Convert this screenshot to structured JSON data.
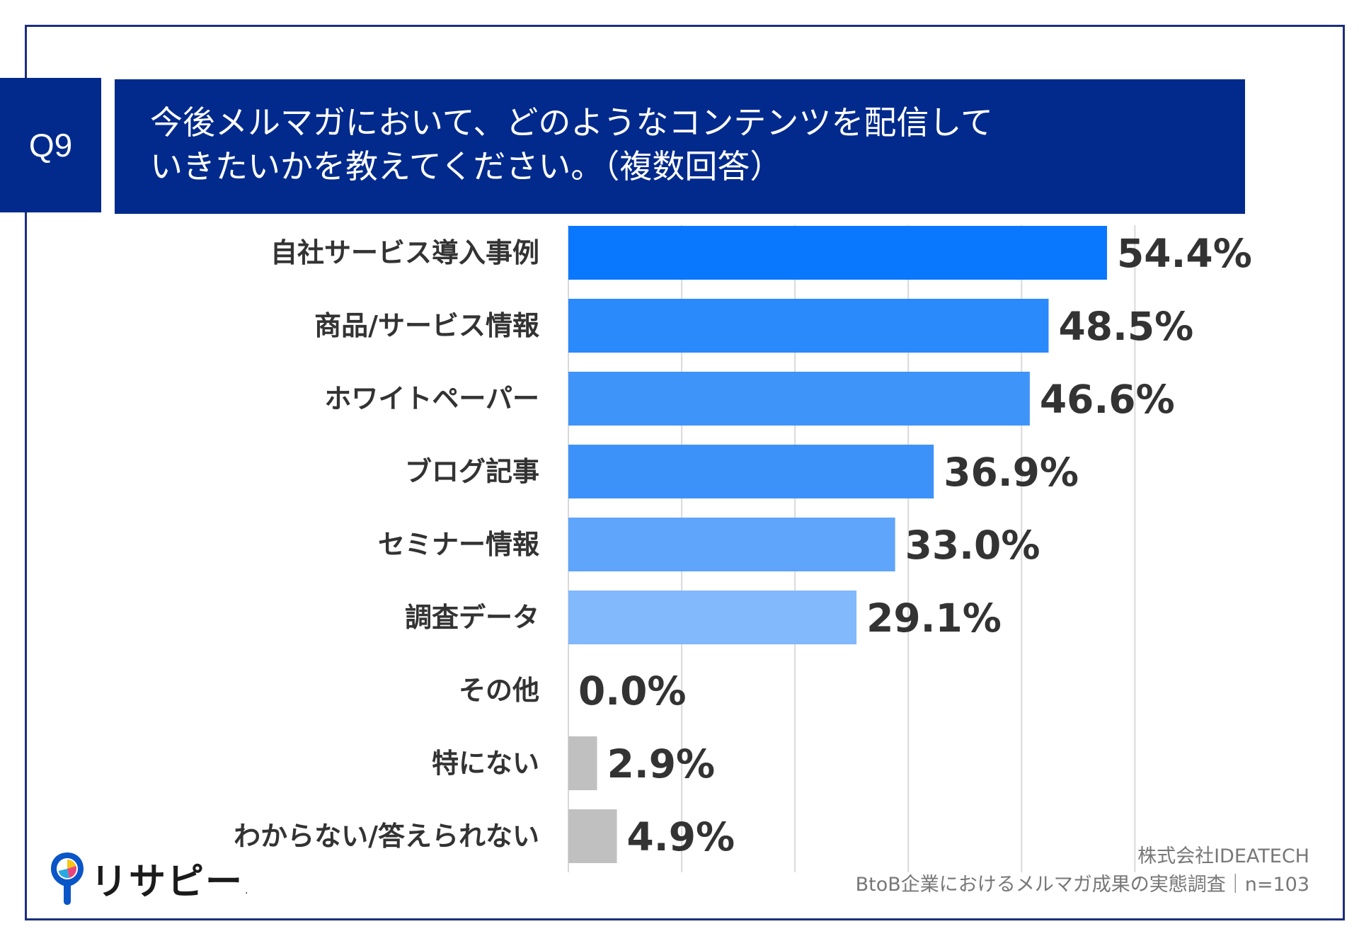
{
  "question_badge": "Q9",
  "title": {
    "line1": "今後メルマガにおいて、どのようなコンテンツを配信して",
    "line2": "いきたいかを教えてください。（複数回答）"
  },
  "chart_data": {
    "type": "bar",
    "orientation": "horizontal",
    "title": "今後メルマガにおいて、どのようなコンテンツを配信していきたいかを教えてください。（複数回答）",
    "categories": [
      "自社サービス導入事例",
      "商品/サービス情報",
      "ホワイトペーパー",
      "ブログ記事",
      "セミナー情報",
      "調査データ",
      "その他",
      "特にない",
      "わからない/答えられない"
    ],
    "values": [
      54.4,
      48.5,
      46.6,
      36.9,
      33.0,
      29.1,
      0.0,
      2.9,
      4.9
    ],
    "value_labels": [
      "54.4%",
      "48.5%",
      "46.6%",
      "36.9%",
      "33.0%",
      "29.1%",
      "0.0%",
      "2.9%",
      "4.9%"
    ],
    "bar_colors": [
      "#0a77ff",
      "#2a89fb",
      "#3f94fa",
      "#3d92f9",
      "#5ea5fb",
      "#82b8fc",
      "#c0c0c0",
      "#c0c0c0",
      "#c0c0c0"
    ],
    "xlim": [
      0,
      60
    ],
    "grid": true,
    "unit": "%"
  },
  "logo": {
    "text": "リサピー",
    "dot": "."
  },
  "source": {
    "company": "株式会社IDEATECH",
    "survey": "BtoB企業におけるメルマガ成果の実態調査｜n=103"
  }
}
